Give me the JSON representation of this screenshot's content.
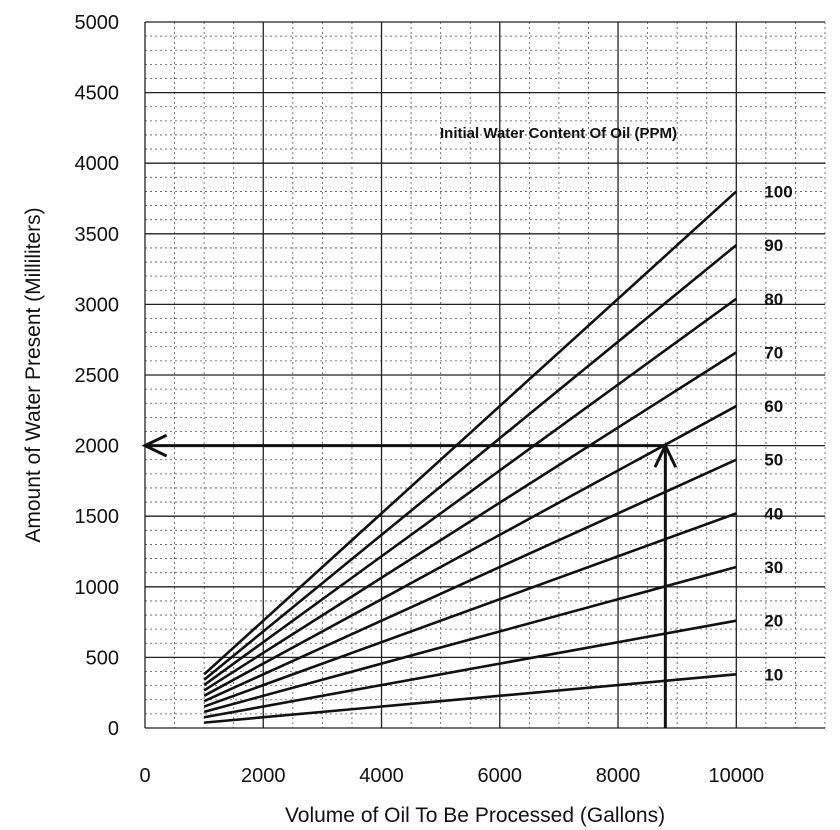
{
  "chart_data": {
    "type": "line",
    "title": "",
    "xlabel": "Volume of Oil To Be Processed (Gallons)",
    "ylabel": "Amount of Water Present (Milliliters)",
    "xlim": [
      0,
      11500
    ],
    "ylim": [
      0,
      5000
    ],
    "x_ticks": [
      0,
      2000,
      4000,
      6000,
      8000,
      10000
    ],
    "y_ticks": [
      0,
      500,
      1000,
      1500,
      2000,
      2500,
      3000,
      3500,
      4000,
      4500,
      5000
    ],
    "grid": true,
    "legend_title": "Initial Water Content Of Oil (PPM)",
    "x": [
      1000,
      10000
    ],
    "series": [
      {
        "name": "10",
        "values": [
          38,
          380
        ]
      },
      {
        "name": "20",
        "values": [
          76,
          760
        ]
      },
      {
        "name": "30",
        "values": [
          114,
          1140
        ]
      },
      {
        "name": "40",
        "values": [
          152,
          1520
        ]
      },
      {
        "name": "50",
        "values": [
          190,
          1900
        ]
      },
      {
        "name": "60",
        "values": [
          228,
          2280
        ]
      },
      {
        "name": "70",
        "values": [
          266,
          2660
        ]
      },
      {
        "name": "80",
        "values": [
          304,
          3040
        ]
      },
      {
        "name": "90",
        "values": [
          342,
          3420
        ]
      },
      {
        "name": "100",
        "values": [
          380,
          3800
        ]
      }
    ],
    "annotations": [
      {
        "type": "arrow",
        "from": [
          8800,
          0
        ],
        "to": [
          8800,
          2000
        ]
      },
      {
        "type": "arrow",
        "from": [
          8800,
          2000
        ],
        "to": [
          0,
          2000
        ]
      }
    ]
  }
}
